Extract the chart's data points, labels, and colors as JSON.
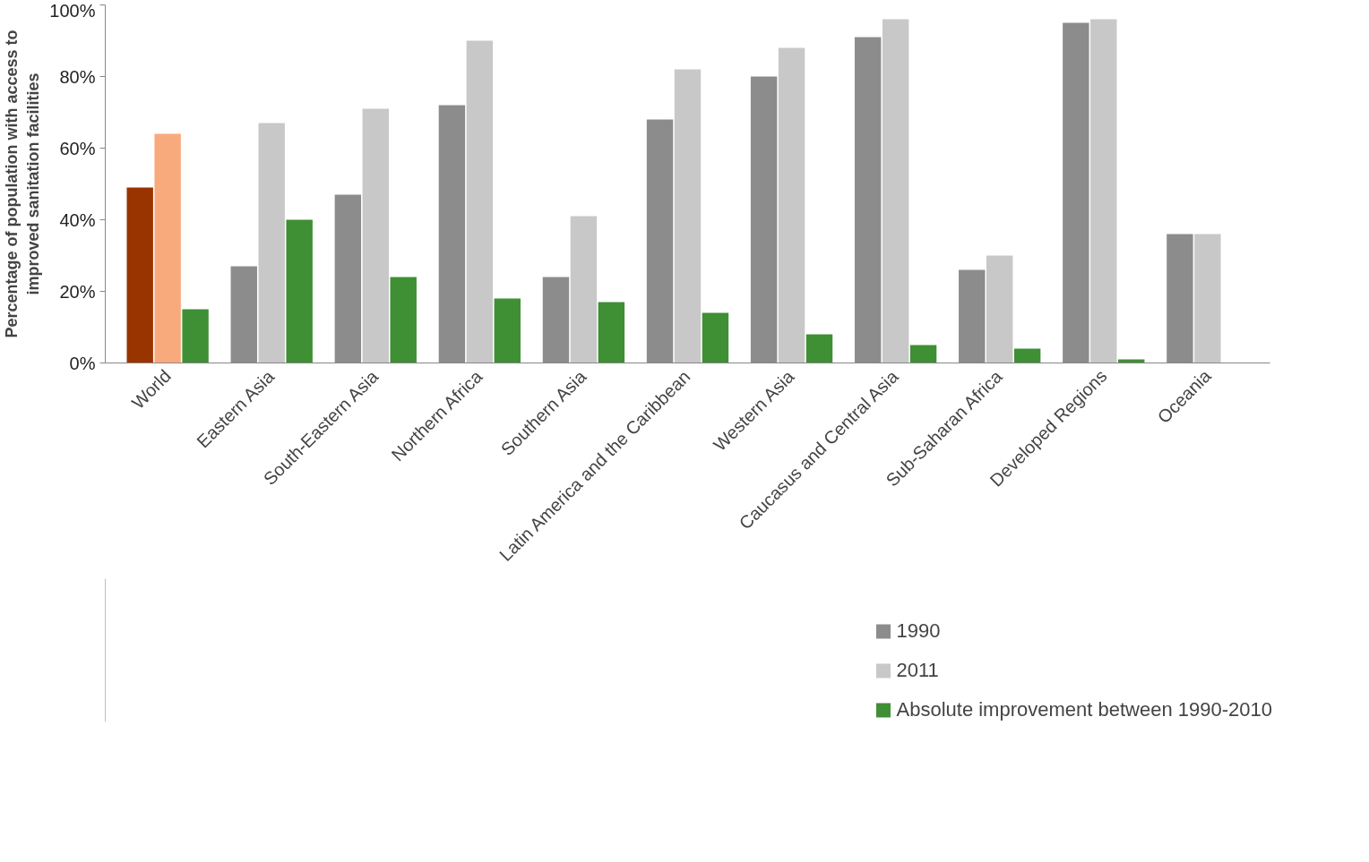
{
  "chart_data": {
    "type": "bar",
    "ylabel": "Percentage of population with access to improved sanitation facilities",
    "categories": [
      "World",
      "Eastern Asia",
      "South-Eastern Asia",
      "Northern Africa",
      "Southern Asia",
      "Latin America and the Caribbean",
      "Western Asia",
      "Caucasus and Central Asia",
      "Sub-Saharan Africa",
      "Developed Regions",
      "Oceania"
    ],
    "series": [
      {
        "name": "1990",
        "color": "#8c8c8c",
        "colors": [
          "#993300",
          null,
          null,
          null,
          null,
          null,
          null,
          null,
          null,
          null,
          null
        ],
        "values": [
          49,
          27,
          47,
          72,
          24,
          68,
          80,
          91,
          26,
          95,
          36
        ]
      },
      {
        "name": "2011",
        "color": "#c8c8c8",
        "colors": [
          "#f9aa7c",
          null,
          null,
          null,
          null,
          null,
          null,
          null,
          null,
          null,
          null
        ],
        "values": [
          64,
          67,
          71,
          90,
          41,
          82,
          88,
          96,
          30,
          96,
          36
        ]
      },
      {
        "name": "Absolute improvement between 1990-2010",
        "color": "#3f8f34",
        "values": [
          15,
          40,
          24,
          18,
          17,
          14,
          8,
          5,
          4,
          1,
          null
        ]
      }
    ],
    "ylim": [
      0,
      100
    ],
    "yticks": [
      {
        "value": 0,
        "label": "0%"
      },
      {
        "value": 20,
        "label": "20%"
      },
      {
        "value": 40,
        "label": "40%"
      },
      {
        "value": 60,
        "label": "60%"
      },
      {
        "value": 80,
        "label": "80%"
      },
      {
        "value": 100,
        "label": "100%"
      }
    ],
    "grid": false,
    "legend": "bottom right"
  }
}
